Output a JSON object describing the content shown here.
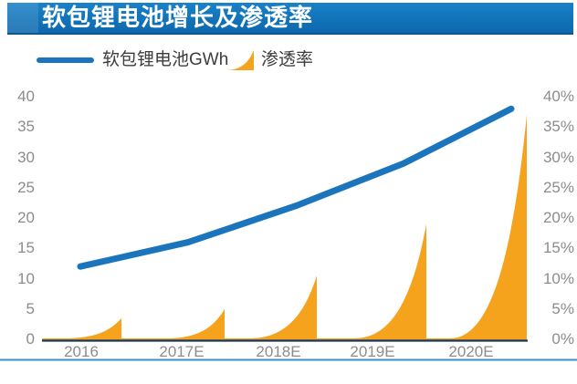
{
  "title": "软包锂电池增长及渗透率",
  "legend": {
    "battery_label": "软包锂电池GWh",
    "penetration_label": "渗透率"
  },
  "colors": {
    "banner_blue": "#1173b8",
    "line_blue": "#1b75bc",
    "area_orange": "#f5a21d",
    "axis_navy": "#17375e",
    "divider_blue": "#3e8fc9",
    "tick_gray": "#8c8c8c"
  },
  "chart_data": {
    "type": "line+area",
    "title": "软包锂电池增长及渗透率",
    "categories": [
      "2016",
      "2017E",
      "2018E",
      "2019E",
      "2020E"
    ],
    "series": [
      {
        "name": "软包锂电池GWh",
        "type": "line",
        "axis": "left",
        "unit": "GWh",
        "values": [
          12,
          16,
          22,
          29,
          38
        ],
        "color": "#1b75bc"
      },
      {
        "name": "渗透率",
        "type": "area-spike",
        "axis": "right",
        "unit": "%",
        "values": [
          3.5,
          5,
          10.5,
          19,
          37
        ],
        "color": "#f5a21d"
      }
    ],
    "left_axis": {
      "min": 0,
      "max": 40,
      "step": 5,
      "ticks": [
        "0",
        "5",
        "10",
        "15",
        "20",
        "25",
        "30",
        "35",
        "40"
      ]
    },
    "right_axis": {
      "min": 0,
      "max": 40,
      "step": 5,
      "ticks": [
        "0%",
        "5%",
        "10%",
        "15%",
        "20%",
        "25%",
        "30%",
        "35%",
        "40%"
      ]
    },
    "grid": false,
    "legend_position": "top-left"
  }
}
